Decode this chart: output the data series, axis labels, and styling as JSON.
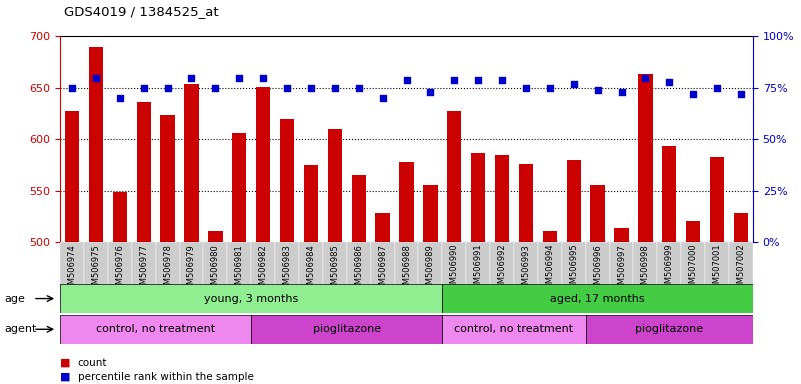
{
  "title": "GDS4019 / 1384525_at",
  "samples": [
    "GSM506974",
    "GSM506975",
    "GSM506976",
    "GSM506977",
    "GSM506978",
    "GSM506979",
    "GSM506980",
    "GSM506981",
    "GSM506982",
    "GSM506983",
    "GSM506984",
    "GSM506985",
    "GSM506986",
    "GSM506987",
    "GSM506988",
    "GSM506989",
    "GSM506990",
    "GSM506991",
    "GSM506992",
    "GSM506993",
    "GSM506994",
    "GSM506995",
    "GSM506996",
    "GSM506997",
    "GSM506998",
    "GSM506999",
    "GSM507000",
    "GSM507001",
    "GSM507002"
  ],
  "counts": [
    627,
    690,
    549,
    636,
    624,
    654,
    511,
    606,
    651,
    620,
    575,
    610,
    565,
    528,
    578,
    555,
    627,
    587,
    585,
    576,
    511,
    580,
    555,
    514,
    663,
    593,
    520,
    583,
    528
  ],
  "percentiles": [
    75,
    80,
    70,
    75,
    75,
    80,
    75,
    80,
    80,
    75,
    75,
    75,
    75,
    70,
    79,
    73,
    79,
    79,
    79,
    75,
    75,
    77,
    74,
    73,
    80,
    78,
    72,
    75,
    72
  ],
  "ylim_left": [
    500,
    700
  ],
  "ylim_right": [
    0,
    100
  ],
  "yticks_left": [
    500,
    550,
    600,
    650,
    700
  ],
  "yticks_right": [
    0,
    25,
    50,
    75,
    100
  ],
  "bar_color": "#cc0000",
  "dot_color": "#0000cc",
  "age_bands": [
    {
      "label": "young, 3 months",
      "start": 0,
      "end": 16,
      "color": "#90ee90"
    },
    {
      "label": "aged, 17 months",
      "start": 16,
      "end": 29,
      "color": "#44cc44"
    }
  ],
  "agent_bands": [
    {
      "label": "control, no treatment",
      "start": 0,
      "end": 8,
      "color": "#ee88ee"
    },
    {
      "label": "pioglitazone",
      "start": 8,
      "end": 16,
      "color": "#cc44cc"
    },
    {
      "label": "control, no treatment",
      "start": 16,
      "end": 22,
      "color": "#ee88ee"
    },
    {
      "label": "pioglitazone",
      "start": 22,
      "end": 29,
      "color": "#cc44cc"
    }
  ],
  "legend_count_label": "count",
  "legend_pct_label": "percentile rank within the sample",
  "title_color": "#000000",
  "left_axis_color": "#cc0000",
  "right_axis_color": "#0000cc"
}
